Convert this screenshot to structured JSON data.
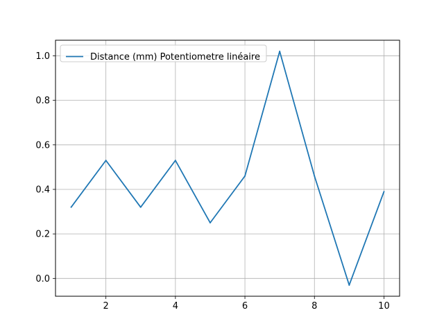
{
  "chart_data": {
    "type": "line",
    "title": "",
    "xlabel": "",
    "ylabel": "",
    "x": [
      1,
      2,
      3,
      4,
      5,
      6,
      7,
      8,
      9,
      10
    ],
    "series": [
      {
        "name": "Distance (mm) Potentiometre linéaire",
        "color": "#1f77b4",
        "values": [
          0.32,
          0.53,
          0.32,
          0.53,
          0.25,
          0.46,
          1.02,
          0.46,
          -0.03,
          0.39
        ]
      }
    ],
    "xlim": [
      0.55,
      10.45
    ],
    "ylim": [
      -0.08,
      1.07
    ],
    "xticks": [
      2,
      4,
      6,
      8,
      10
    ],
    "xtick_labels": [
      "2",
      "4",
      "6",
      "8",
      "10"
    ],
    "yticks": [
      0.0,
      0.2,
      0.4,
      0.6,
      0.8,
      1.0
    ],
    "ytick_labels": [
      "0.0",
      "0.2",
      "0.4",
      "0.6",
      "0.8",
      "1.0"
    ],
    "grid": true,
    "legend_position": "top-left"
  }
}
